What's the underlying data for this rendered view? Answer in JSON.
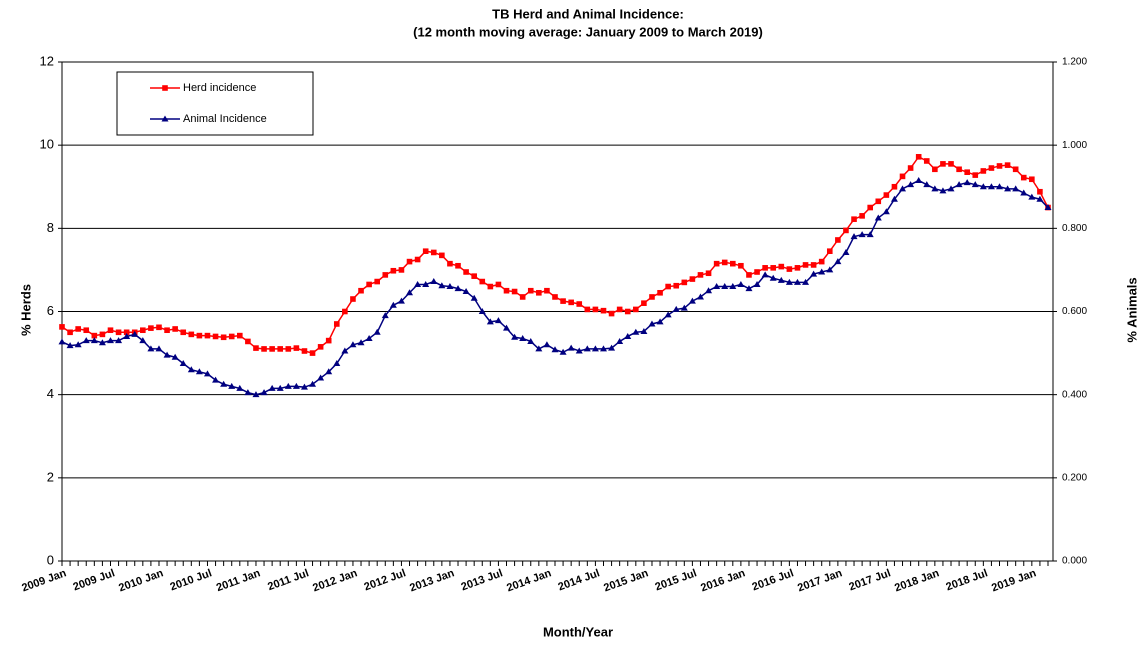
{
  "chart_data": {
    "type": "line",
    "title": "TB Herd and Animal Incidence:",
    "subtitle": "(12 month moving average: January 2009 to March 2019)",
    "x_label": "Month/Year",
    "y_label": "% Herds",
    "y2_label": "% Animals",
    "categories": [
      "2009 Jan",
      null,
      null,
      null,
      null,
      null,
      "2009 Jul",
      null,
      null,
      null,
      null,
      null,
      "2010 Jan",
      null,
      null,
      null,
      null,
      null,
      "2010 Jul",
      null,
      null,
      null,
      null,
      null,
      "2011 Jan",
      null,
      null,
      null,
      null,
      null,
      "2011 Jul",
      null,
      null,
      null,
      null,
      null,
      "2012 Jan",
      null,
      null,
      null,
      null,
      null,
      "2012 Jul",
      null,
      null,
      null,
      null,
      null,
      "2013 Jan",
      null,
      null,
      null,
      null,
      null,
      "2013 Jul",
      null,
      null,
      null,
      null,
      null,
      "2014 Jan",
      null,
      null,
      null,
      null,
      null,
      "2014 Jul",
      null,
      null,
      null,
      null,
      null,
      "2015 Jan",
      null,
      null,
      null,
      null,
      null,
      "2015 Jul",
      null,
      null,
      null,
      null,
      null,
      "2016 Jan",
      null,
      null,
      null,
      null,
      null,
      "2016 Jul",
      null,
      null,
      null,
      null,
      null,
      "2017 Jan",
      null,
      null,
      null,
      null,
      null,
      "2017 Jul",
      null,
      null,
      null,
      null,
      null,
      "2018 Jan",
      null,
      null,
      null,
      null,
      null,
      "2018 Jul",
      null,
      null,
      null,
      null,
      null,
      "2019 Jan",
      null,
      null
    ],
    "series": [
      {
        "name": "Herd incidence",
        "color": "#ff0000",
        "marker": "square",
        "values": [
          5.63,
          5.5,
          5.58,
          5.55,
          5.42,
          5.45,
          5.55,
          5.5,
          5.5,
          5.5,
          5.55,
          5.6,
          5.62,
          5.55,
          5.58,
          5.5,
          5.45,
          5.42,
          5.42,
          5.4,
          5.38,
          5.4,
          5.42,
          5.28,
          5.12,
          5.1,
          5.1,
          5.1,
          5.1,
          5.12,
          5.05,
          5.0,
          5.15,
          5.3,
          5.7,
          6.0,
          6.3,
          6.5,
          6.65,
          6.72,
          6.88,
          6.98,
          7.0,
          7.2,
          7.25,
          7.45,
          7.42,
          7.35,
          7.15,
          7.1,
          6.95,
          6.85,
          6.72,
          6.6,
          6.65,
          6.5,
          6.48,
          6.35,
          6.5,
          6.45,
          6.5,
          6.35,
          6.25,
          6.22,
          6.18,
          6.05,
          6.05,
          6.02,
          5.95,
          6.05,
          6.0,
          6.05,
          6.2,
          6.35,
          6.45,
          6.6,
          6.62,
          6.7,
          6.78,
          6.88,
          6.92,
          7.15,
          7.18,
          7.15,
          7.1,
          6.88,
          6.95,
          7.05,
          7.05,
          7.08,
          7.02,
          7.05,
          7.12,
          7.12,
          7.2,
          7.45,
          7.72,
          7.95,
          8.22,
          8.3,
          8.5,
          8.65,
          8.8,
          9.0,
          9.25,
          9.45,
          9.72,
          9.62,
          9.42,
          9.55,
          9.55,
          9.42,
          9.35,
          9.28,
          9.38,
          9.45,
          9.5,
          9.52,
          9.42,
          9.22,
          9.18,
          8.88,
          8.5
        ]
      },
      {
        "name": "Animal Incidence",
        "color": "#000080",
        "marker": "triangle",
        "axis": "y2",
        "values": [
          0.527,
          0.518,
          0.52,
          0.53,
          0.53,
          0.525,
          0.53,
          0.53,
          0.54,
          0.545,
          0.53,
          0.51,
          0.51,
          0.495,
          0.49,
          0.475,
          0.46,
          0.455,
          0.45,
          0.435,
          0.425,
          0.42,
          0.415,
          0.405,
          0.4,
          0.405,
          0.415,
          0.415,
          0.42,
          0.42,
          0.418,
          0.425,
          0.44,
          0.455,
          0.475,
          0.505,
          0.52,
          0.525,
          0.535,
          0.55,
          0.59,
          0.615,
          0.625,
          0.645,
          0.665,
          0.665,
          0.672,
          0.662,
          0.66,
          0.655,
          0.648,
          0.632,
          0.6,
          0.575,
          0.578,
          0.56,
          0.538,
          0.535,
          0.528,
          0.51,
          0.52,
          0.508,
          0.502,
          0.512,
          0.505,
          0.51,
          0.51,
          0.51,
          0.512,
          0.528,
          0.54,
          0.55,
          0.552,
          0.57,
          0.575,
          0.592,
          0.605,
          0.608,
          0.625,
          0.635,
          0.65,
          0.66,
          0.66,
          0.66,
          0.665,
          0.655,
          0.665,
          0.688,
          0.68,
          0.675,
          0.67,
          0.67,
          0.67,
          0.69,
          0.695,
          0.7,
          0.72,
          0.742,
          0.78,
          0.785,
          0.785,
          0.825,
          0.84,
          0.87,
          0.895,
          0.905,
          0.915,
          0.905,
          0.895,
          0.89,
          0.895,
          0.905,
          0.91,
          0.905,
          0.9,
          0.9,
          0.9,
          0.895,
          0.895,
          0.885,
          0.875,
          0.87,
          0.85
        ]
      }
    ],
    "ylim": [
      0,
      12
    ],
    "yticks": [
      0,
      2,
      4,
      6,
      8,
      10,
      12
    ],
    "y2lim": [
      0,
      1.2
    ],
    "y2ticks": [
      {
        "value": 0,
        "label": "0.000"
      },
      {
        "value": 0.2,
        "label": "0.200"
      },
      {
        "value": 0.4,
        "label": "0.400"
      },
      {
        "value": 0.6,
        "label": "0.600"
      },
      {
        "value": 0.8,
        "label": "0.800"
      },
      {
        "value": 1.0,
        "label": "1.000"
      },
      {
        "value": 1.2,
        "label": "1.200"
      }
    ],
    "grid": true,
    "legend": "upper left"
  }
}
